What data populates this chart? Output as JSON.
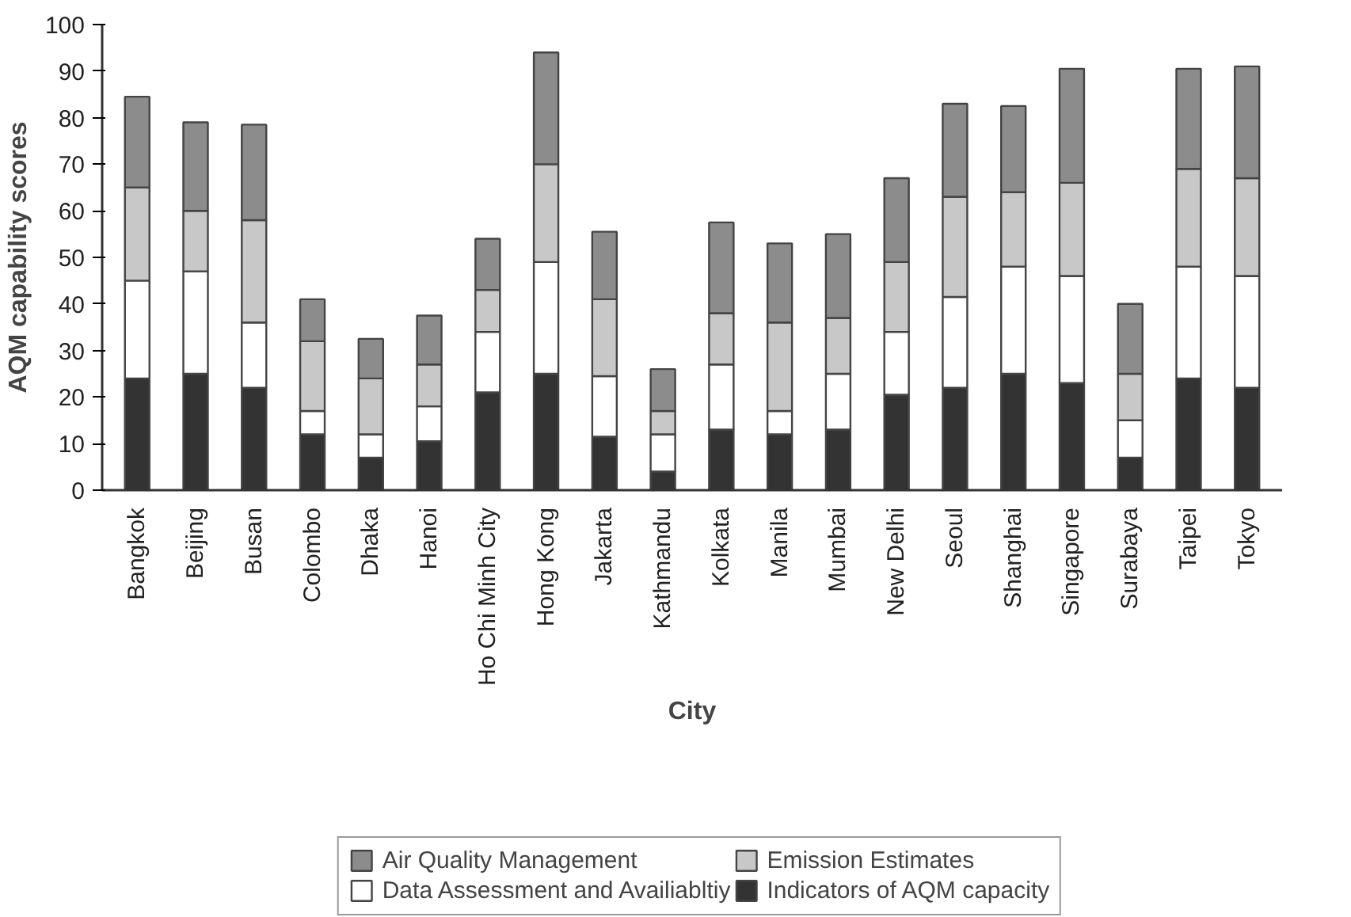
{
  "chart_data": {
    "type": "bar",
    "stacked": true,
    "xlabel": "City",
    "ylabel": "AQM capability scores",
    "categories": [
      "Bangkok",
      "Beijing",
      "Busan",
      "Colombo",
      "Dhaka",
      "Hanoi",
      "Ho Chi Minh City",
      "Hong Kong",
      "Jakarta",
      "Kathmandu",
      "Kolkata",
      "Manila",
      "Mumbai",
      "New Delhi",
      "Seoul",
      "Shanghai",
      "Singapore",
      "Surabaya",
      "Taipei",
      "Tokyo"
    ],
    "series": [
      {
        "name": "Indicators of AQM capacity",
        "color": "#333333",
        "values": [
          24,
          25,
          22,
          12,
          7,
          10.5,
          21,
          25,
          11.5,
          4,
          13,
          12,
          13,
          20.5,
          22,
          25,
          23,
          7,
          24,
          22
        ]
      },
      {
        "name": "Data Assessment and Availiabltiy",
        "color": "#ffffff",
        "values": [
          21,
          22,
          14,
          5,
          5,
          7.5,
          13,
          24,
          13,
          8,
          14,
          5,
          12,
          13.5,
          19.5,
          23,
          23,
          8,
          24,
          24
        ]
      },
      {
        "name": "Emission Estimates",
        "color": "#c8c8c8",
        "values": [
          20,
          13,
          22,
          15,
          12,
          9,
          9,
          21,
          16.5,
          5,
          11,
          19,
          12,
          15,
          21.5,
          16,
          20,
          10,
          21,
          21
        ]
      },
      {
        "name": "Air Quality Management",
        "color": "#8c8c8c",
        "values": [
          19.5,
          19,
          20.5,
          9,
          8.5,
          10.5,
          11,
          24,
          14.5,
          9,
          19.5,
          17,
          18,
          18,
          20,
          18.5,
          24.5,
          15,
          21.5,
          24
        ]
      }
    ],
    "ylim": [
      0,
      100
    ],
    "yticks": [
      0,
      10,
      20,
      30,
      40,
      50,
      60,
      70,
      80,
      90,
      100
    ],
    "grid": false,
    "legend": "bottom"
  }
}
